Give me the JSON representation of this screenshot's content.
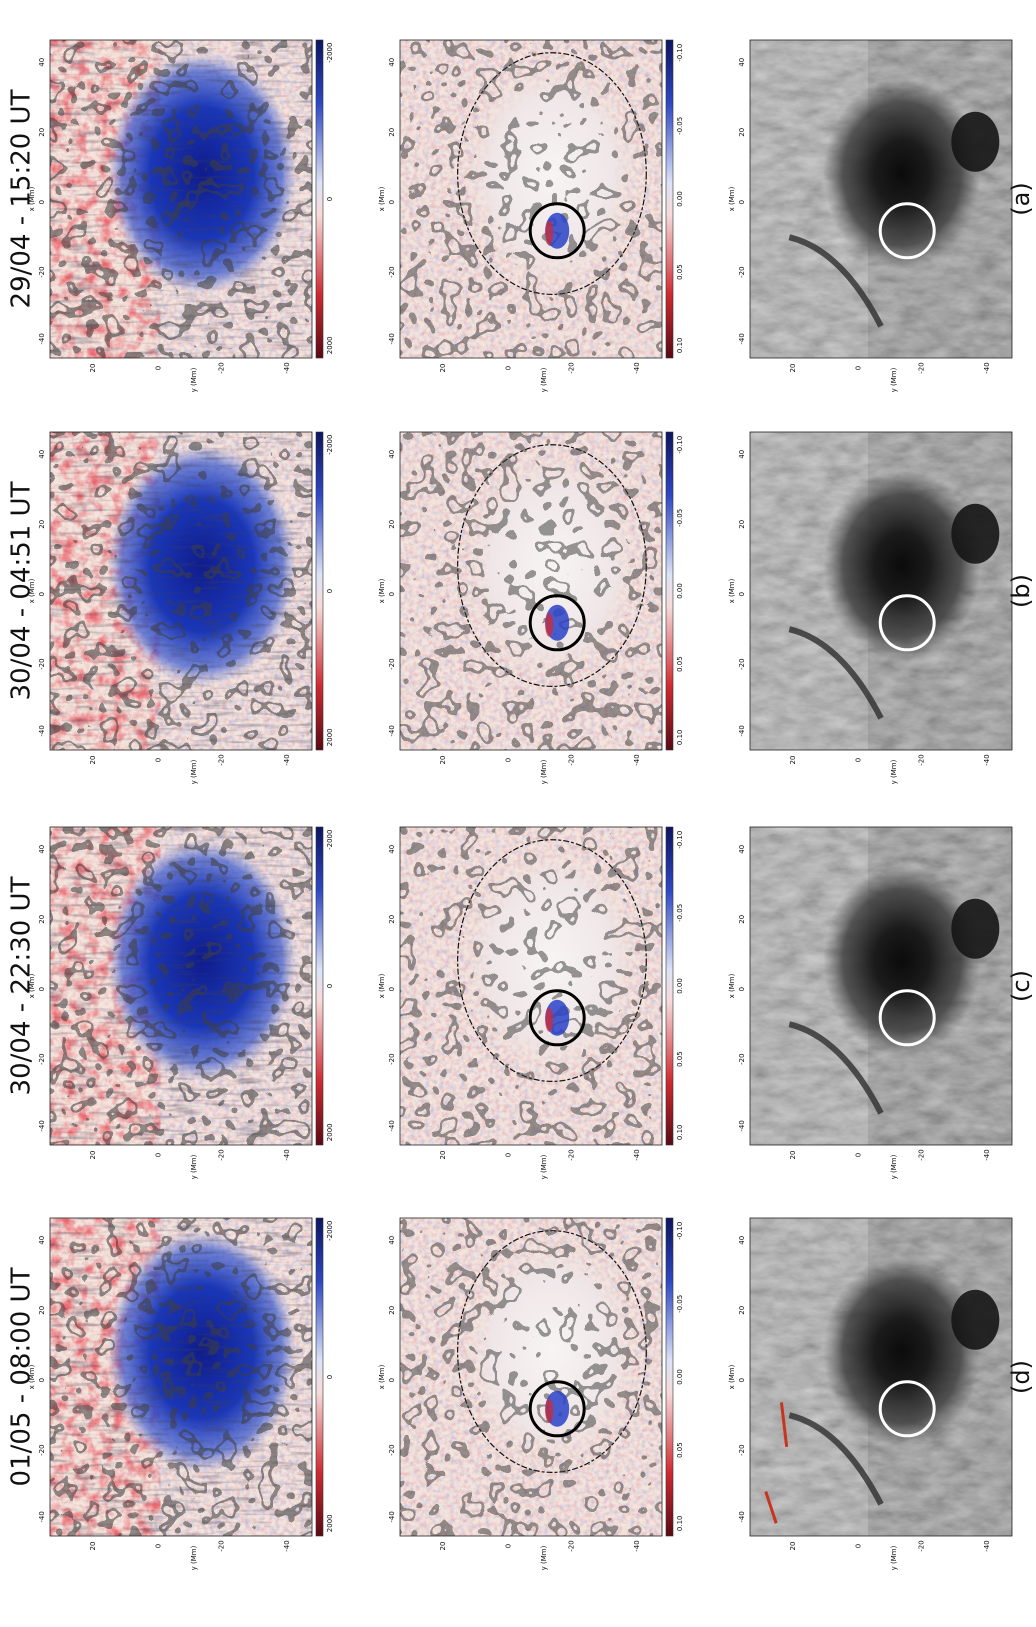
{
  "panels": [
    {
      "time": "29/04 - 15:20 UT",
      "letter": "(a)"
    },
    {
      "time": "30/04 - 04:51 UT",
      "letter": "(b)"
    },
    {
      "time": "30/04 - 22:30 UT",
      "letter": "(c)"
    },
    {
      "time": "01/05 - 08:00 UT",
      "letter": "(d)"
    }
  ],
  "axes": {
    "xlabel": "x (Mm)",
    "ylabel": "y (Mm)",
    "xticks": [
      "-40",
      "-20",
      "0",
      "20",
      "40"
    ],
    "yticks": [
      "20",
      "0",
      "-20",
      "-40"
    ]
  },
  "colorbars": {
    "field": [
      "2000",
      "0",
      "-2000"
    ],
    "helicity": [
      "0.10",
      "0.05",
      "0.00",
      "-0.05",
      "-0.10"
    ]
  },
  "colors": {
    "positive": "#d8262b",
    "negative": "#1a2fb0",
    "neutral": "#f3e5dd",
    "contour": "#111111",
    "circle_black": "#000000",
    "circle_white": "#ffffff",
    "filament_highlight": "#c8341f"
  }
}
